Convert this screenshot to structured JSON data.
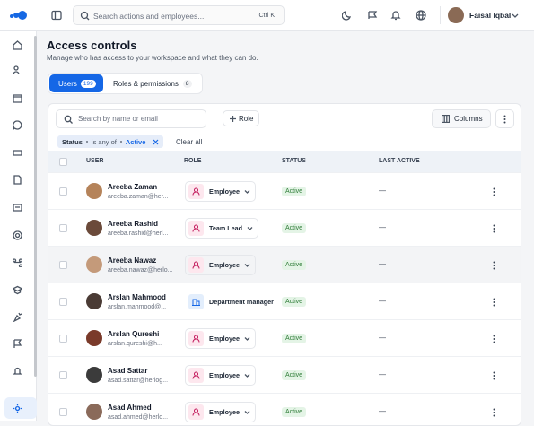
{
  "app": {
    "search_placeholder": "Search actions and employees...",
    "shortcut": "Ctrl K",
    "user_name": "Faisal Iqbal"
  },
  "page": {
    "title": "Access controls",
    "subtitle": "Manage who has access to your workspace and what they can do."
  },
  "tabs": [
    {
      "label": "Users",
      "count": 199
    },
    {
      "label": "Roles & permissions",
      "count": 8
    }
  ],
  "toolbar": {
    "search_placeholder": "Search by name or email",
    "role_button": "Role",
    "columns_button": "Columns"
  },
  "filter": {
    "field": "Status",
    "operator": "is any of",
    "value": "Active",
    "clear": "Clear all"
  },
  "table": {
    "columns": [
      "USER",
      "ROLE",
      "STATUS",
      "LAST ACTIVE"
    ],
    "rows": [
      {
        "name": "Areeba Zaman",
        "email": "areeba.zaman@her...",
        "role": "Employee",
        "status": "Active",
        "last_active": "—"
      },
      {
        "name": "Areeba Rashid",
        "email": "areeba.rashid@herl...",
        "role": "Team Lead",
        "status": "Active",
        "last_active": "—"
      },
      {
        "name": "Areeba Nawaz",
        "email": "areeba.nawaz@herlo...",
        "role": "Employee",
        "status": "Active",
        "last_active": "—"
      },
      {
        "name": "Arslan Mahmood",
        "email": "arslan.mahmood@...",
        "role": "Department manager",
        "status": "Active",
        "last_active": "—"
      },
      {
        "name": "Arslan Qureshi",
        "email": "arslan.qureshi@h...",
        "role": "Employee",
        "status": "Active",
        "last_active": "—"
      },
      {
        "name": "Asad Sattar",
        "email": "asad.sattar@herlog...",
        "role": "Employee",
        "status": "Active",
        "last_active": "—"
      },
      {
        "name": "Asad Ahmed",
        "email": "asad.ahmed@herlo...",
        "role": "Employee",
        "status": "Active",
        "last_active": "—"
      }
    ]
  }
}
